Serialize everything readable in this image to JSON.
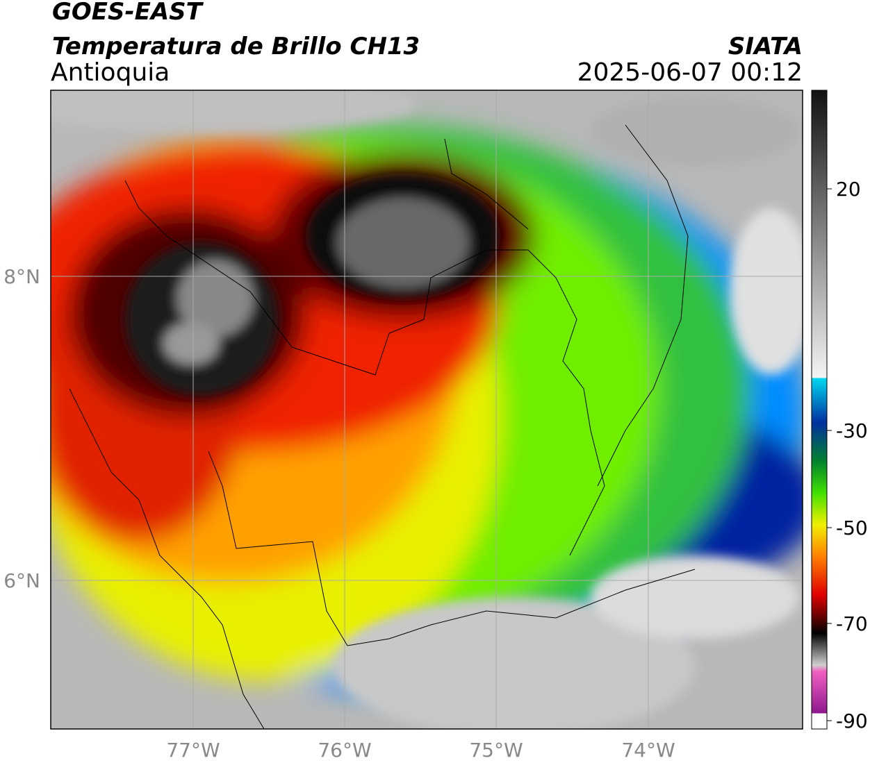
{
  "header": {
    "satellite": "GOES-EAST",
    "product": "Temperatura de Brillo CH13",
    "region": "Antioquia",
    "source": "SIATA",
    "datetime": "2025-06-07 00:12"
  },
  "map": {
    "lat_labels": [
      "8°N",
      "6°N"
    ],
    "lon_labels": [
      "77°W",
      "76°W",
      "75°W",
      "74°W"
    ]
  },
  "colorbar": {
    "ticks": [
      "20",
      "-30",
      "-50",
      "-70",
      "-90"
    ]
  }
}
